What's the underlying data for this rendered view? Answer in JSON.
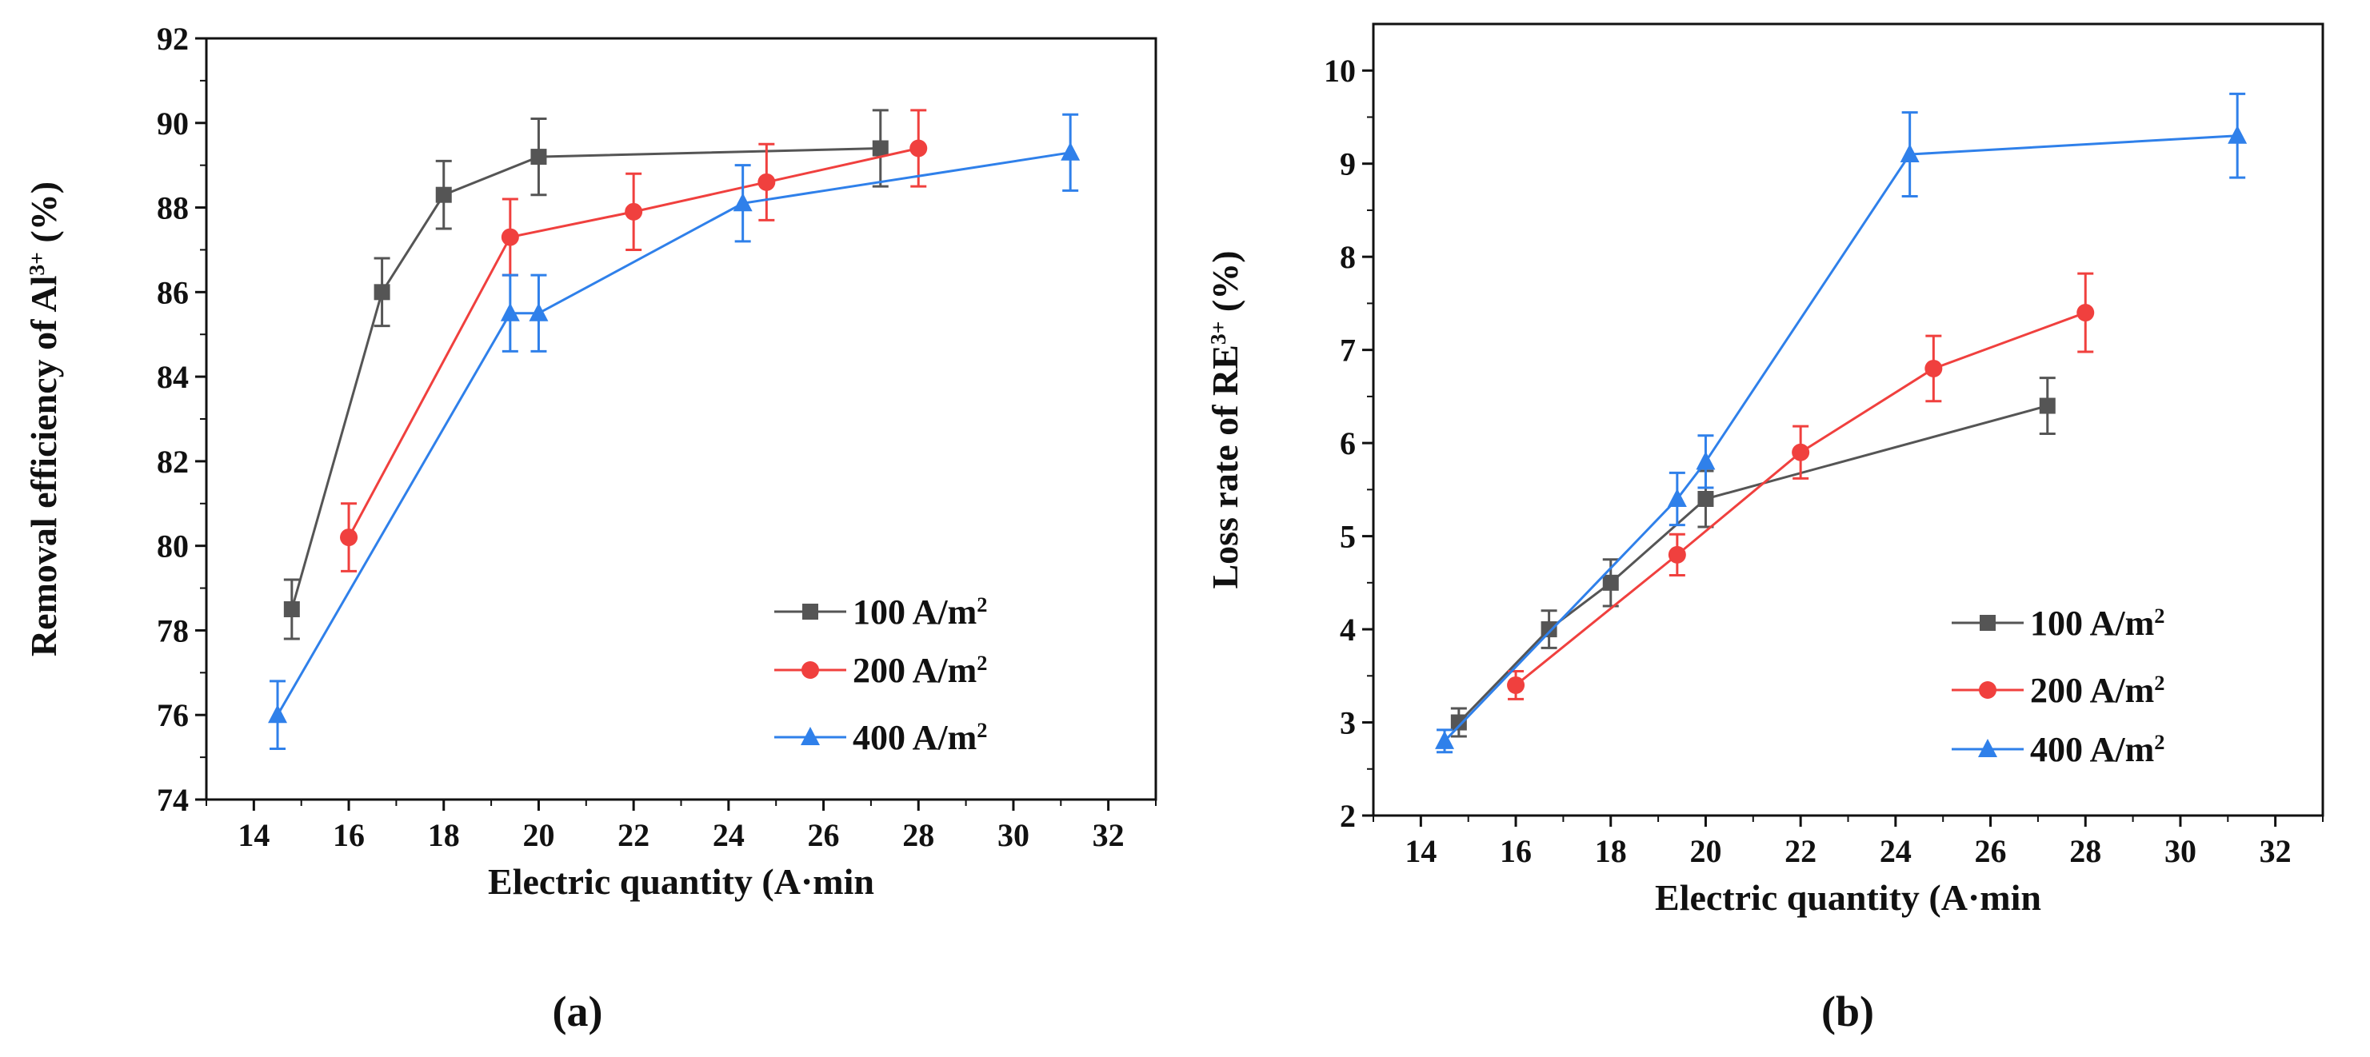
{
  "colors": {
    "s100": "#555555",
    "s200": "#f0403e",
    "s400": "#2f80ea",
    "axis": "#111111"
  },
  "chart_data": [
    {
      "type": "line",
      "panel_label": "(a)",
      "title": "",
      "xlabel": "Electric quantity (A·min",
      "ylabel": "Removal efficiency of Al",
      "ylabel_sup": "3+",
      "ylabel_tail": " (%)",
      "xlim": [
        13,
        33
      ],
      "ylim": [
        74,
        92
      ],
      "xticks": [
        14,
        16,
        18,
        20,
        22,
        24,
        26,
        28,
        30,
        32
      ],
      "yticks": [
        74,
        76,
        78,
        80,
        82,
        84,
        86,
        88,
        90,
        92
      ],
      "legend_position": "bottom-right",
      "series": [
        {
          "name": "100 A/m",
          "name_sup": "2",
          "marker": "square",
          "color_key": "s100",
          "x": [
            14.8,
            16.7,
            18.0,
            20.0,
            27.2
          ],
          "y": [
            78.5,
            86.0,
            88.3,
            89.2,
            89.4
          ],
          "err": [
            0.7,
            0.8,
            0.8,
            0.9,
            0.9
          ]
        },
        {
          "name": "200 A/m",
          "name_sup": "2",
          "marker": "circle",
          "color_key": "s200",
          "x": [
            16.0,
            19.4,
            22.0,
            24.8,
            28.0
          ],
          "y": [
            80.2,
            87.3,
            87.9,
            88.6,
            89.4
          ],
          "err": [
            0.8,
            0.9,
            0.9,
            0.9,
            0.9
          ]
        },
        {
          "name": "400 A/m",
          "name_sup": "2",
          "marker": "triangle",
          "color_key": "s400",
          "x": [
            14.5,
            19.4,
            20.0,
            24.3,
            31.2
          ],
          "y": [
            76.0,
            85.5,
            85.5,
            88.1,
            89.3
          ],
          "err": [
            0.8,
            0.9,
            0.9,
            0.9,
            0.9
          ]
        }
      ]
    },
    {
      "type": "line",
      "panel_label": "(b)",
      "title": "",
      "xlabel": "Electric quantity (A·min",
      "ylabel": "Loss rate of RE",
      "ylabel_sup": "3+",
      "ylabel_tail": " (%)",
      "xlim": [
        13,
        33
      ],
      "ylim": [
        2,
        10.5
      ],
      "xticks": [
        14,
        16,
        18,
        20,
        22,
        24,
        26,
        28,
        30,
        32
      ],
      "yticks": [
        2,
        3,
        4,
        5,
        6,
        7,
        8,
        9,
        10
      ],
      "legend_position": "bottom-right",
      "series": [
        {
          "name": "100 A/m",
          "name_sup": "2",
          "marker": "square",
          "color_key": "s100",
          "x": [
            14.8,
            16.7,
            18.0,
            20.0,
            27.2
          ],
          "y": [
            3.0,
            4.0,
            4.5,
            5.4,
            6.4
          ],
          "err": [
            0.15,
            0.2,
            0.25,
            0.3,
            0.3
          ]
        },
        {
          "name": "200 A/m",
          "name_sup": "2",
          "marker": "circle",
          "color_key": "s200",
          "x": [
            16.0,
            19.4,
            22.0,
            24.8,
            28.0
          ],
          "y": [
            3.4,
            4.8,
            5.9,
            6.8,
            7.4
          ],
          "err": [
            0.15,
            0.22,
            0.28,
            0.35,
            0.42
          ]
        },
        {
          "name": "400 A/m",
          "name_sup": "2",
          "marker": "triangle",
          "color_key": "s400",
          "x": [
            14.5,
            19.4,
            20.0,
            24.3,
            31.2
          ],
          "y": [
            2.8,
            5.4,
            5.8,
            9.1,
            9.3
          ],
          "err": [
            0.12,
            0.28,
            0.28,
            0.45,
            0.45
          ]
        }
      ]
    }
  ]
}
